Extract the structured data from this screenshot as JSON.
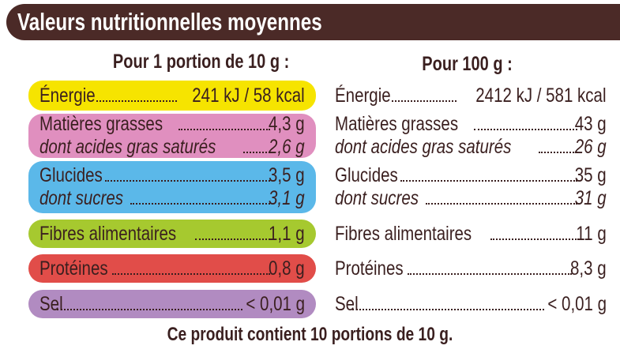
{
  "title": "Valeurs nutritionnelles moyennes",
  "portion_header": "Pour 1 portion de 10 g :",
  "per100_header": "Pour 100 g :",
  "colors": {
    "header": "#4b2a27",
    "energie": "#f6e400",
    "graisses": "#e08fbf",
    "glucides": "#5bb8e9",
    "fibres": "#a6c92f",
    "proteines": "#e14d49",
    "sel": "#b18bc1"
  },
  "portion": [
    {
      "label": "Énergie",
      "value": "241 kJ / 58 kcal"
    },
    {
      "label": "Matières grasses",
      "value": "4,3 g",
      "sub_label": "dont acides gras saturés",
      "sub_value": "2,6 g"
    },
    {
      "label": "Glucides",
      "value": "3,5 g",
      "sub_label": "dont sucres",
      "sub_value": "3,1 g"
    },
    {
      "label": "Fibres alimentaires",
      "value": "1,1 g"
    },
    {
      "label": "Protéines",
      "value": "0,8 g"
    },
    {
      "label": "Sel",
      "value": "< 0,01 g"
    }
  ],
  "per100": [
    {
      "label": "Énergie",
      "value": "2412 kJ / 581 kcal"
    },
    {
      "label": "Matières grasses",
      "value": "43 g",
      "sub_label": "dont acides gras saturés",
      "sub_value": "26 g"
    },
    {
      "label": "Glucides",
      "value": "35 g",
      "sub_label": "dont sucres",
      "sub_value": "31 g"
    },
    {
      "label": "Fibres alimentaires",
      "value": "11 g"
    },
    {
      "label": "Protéines",
      "value": "8,3 g"
    },
    {
      "label": "Sel",
      "value": "< 0,01 g"
    }
  ],
  "footer": "Ce produit contient 10 portions de 10 g."
}
